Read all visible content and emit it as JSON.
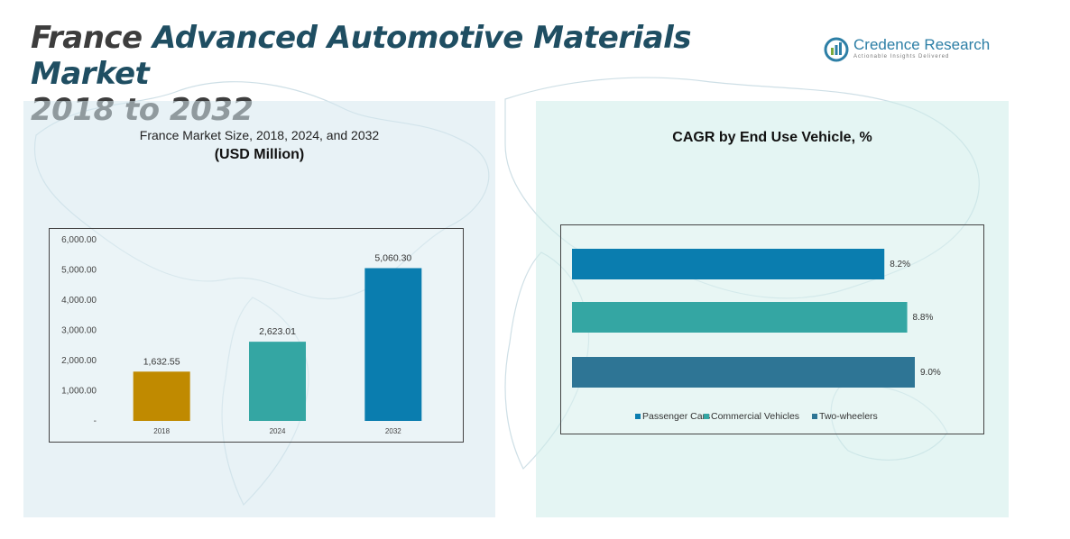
{
  "title": {
    "part1": "France ",
    "part2": "Advanced Automotive Materials Market",
    "part3": "2018 to 2032"
  },
  "logo": {
    "name": "Credence Research",
    "tagline": "Actionable Insights Delivered"
  },
  "left_panel": {
    "title_line1": "France Market Size, 2018, 2024, and 2032",
    "title_line2": "(USD Million)"
  },
  "right_panel": {
    "title": "CAGR by End Use Vehicle, %"
  },
  "colors": {
    "gold": "#C08A00",
    "teal": "#34A6A3",
    "blue": "#0A7DAF",
    "steel": "#2E7595"
  },
  "chart_data": [
    {
      "type": "bar",
      "title": "France Market Size, 2018, 2024, and 2032 (USD Million)",
      "categories": [
        "2018",
        "2024",
        "2032"
      ],
      "values": [
        1632.55,
        2623.01,
        5060.3
      ],
      "value_labels": [
        "1,632.55",
        "2,623.01",
        "5,060.30"
      ],
      "bar_colors": [
        "#C08A00",
        "#34A6A3",
        "#0A7DAF"
      ],
      "ylim": [
        0,
        6000
      ],
      "yticks": [
        0,
        1000,
        2000,
        3000,
        4000,
        5000,
        6000
      ],
      "ytick_labels": [
        "-",
        "1,000.00",
        "2,000.00",
        "3,000.00",
        "4,000.00",
        "5,000.00",
        "6,000.00"
      ],
      "xlabel": "",
      "ylabel": "",
      "grid": false
    },
    {
      "type": "bar",
      "orientation": "horizontal",
      "title": "CAGR by End Use Vehicle, %",
      "categories": [
        "Passenger Cars",
        "Commercial Vehicles",
        "Two-wheelers"
      ],
      "values": [
        8.2,
        8.8,
        9.0
      ],
      "value_labels": [
        "8.2%",
        "8.8%",
        "9.0%"
      ],
      "bar_colors": [
        "#0A7DAF",
        "#34A6A3",
        "#2E7595"
      ],
      "legend": [
        "Passenger Cars",
        "Commercial Vehicles",
        "Two-wheelers"
      ],
      "legend_position": "bottom"
    }
  ]
}
